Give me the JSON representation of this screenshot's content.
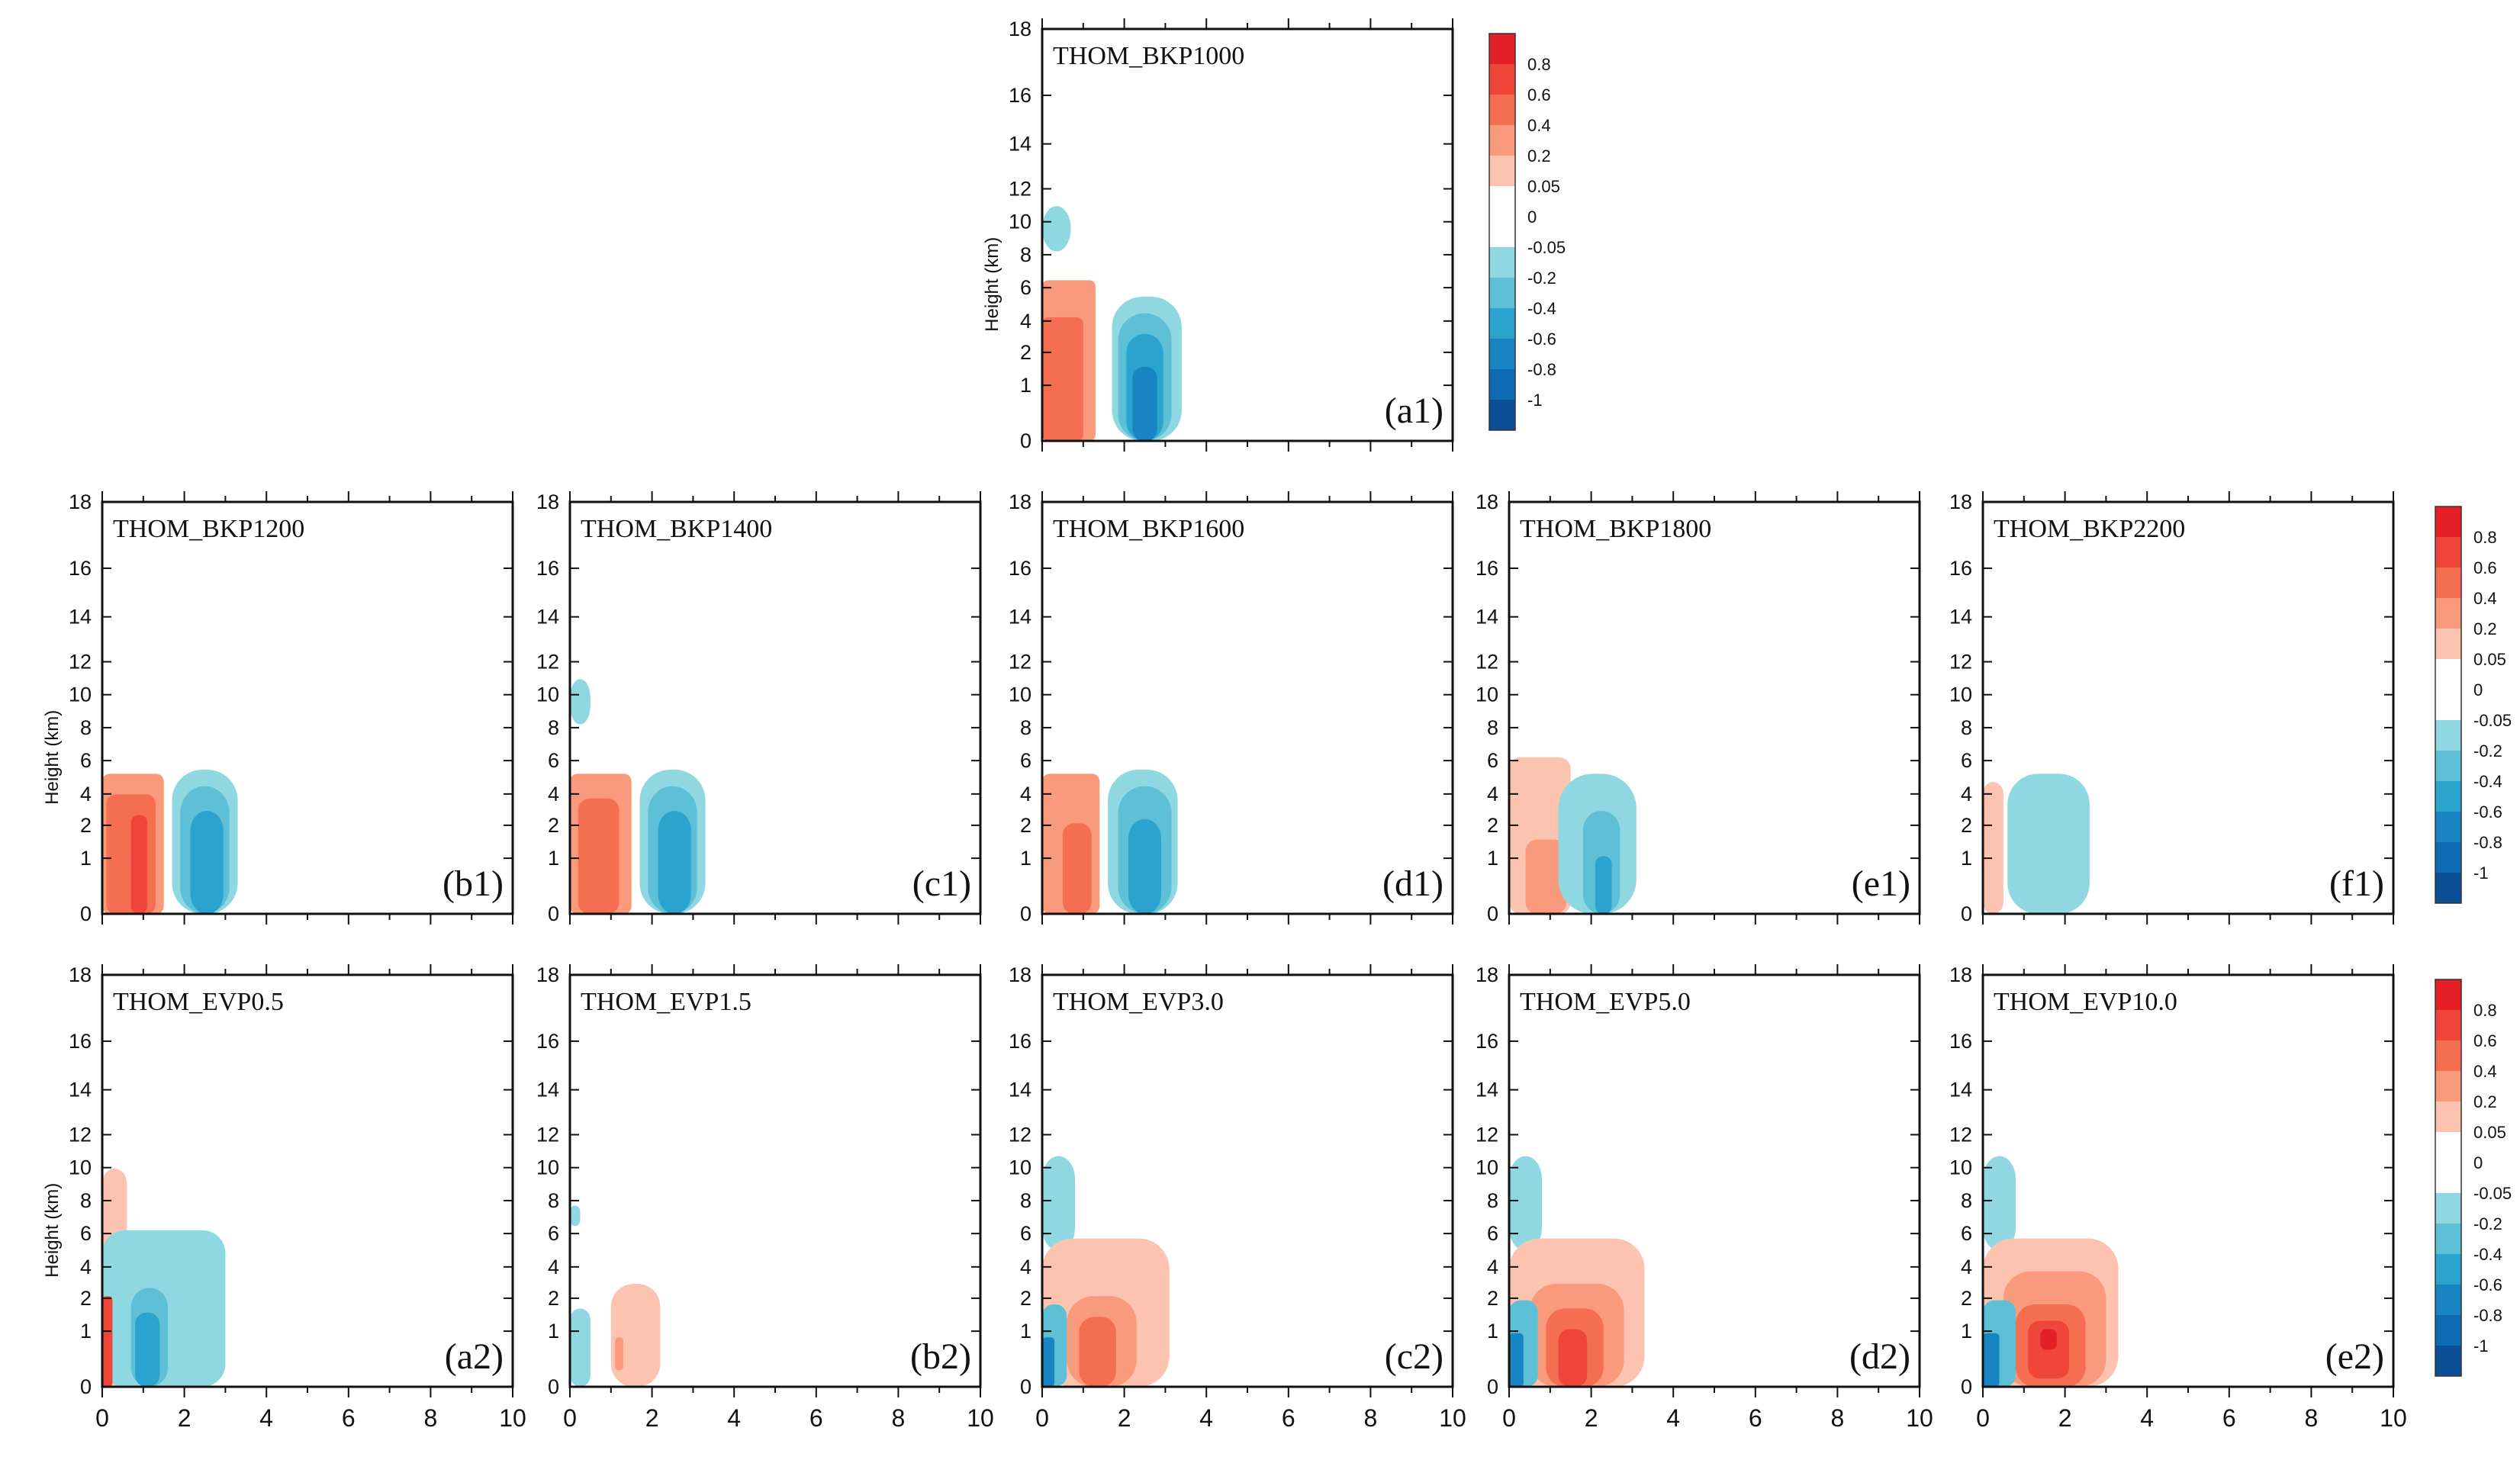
{
  "chart_data": {
    "type": "heatmap",
    "description_axis": {
      "ylabel": "Height (km)",
      "y_ticks": [
        "0",
        "1",
        "2",
        "4",
        "6",
        "8",
        "10",
        "12",
        "14",
        "16",
        "18"
      ],
      "x_ticks": [
        "0",
        "2",
        "4",
        "6",
        "8",
        "10"
      ],
      "xlim": [
        0,
        10
      ],
      "ylim": [
        0,
        18
      ]
    },
    "colorbar": {
      "labels": [
        "0.8",
        "0.6",
        "0.4",
        "0.2",
        "0.05",
        "0",
        "-0.05",
        "-0.2",
        "-0.4",
        "-0.6",
        "-0.8",
        "-1"
      ],
      "colors": [
        "#e41f26",
        "#f0453a",
        "#f56e52",
        "#fa9a7c",
        "#fcc4b0",
        "#ffffff",
        "#ffffff",
        "#8fd8e2",
        "#5ec0d6",
        "#2aa4cf",
        "#1884c2",
        "#0d6bb3",
        "#0a4f95"
      ]
    },
    "panels": [
      {
        "title": "THOM_BKP1000",
        "label": "(a1)",
        "show_ylabel": true,
        "show_xticks": false
      },
      {
        "title": "THOM_BKP1200",
        "label": "(b1)",
        "show_ylabel": true,
        "show_xticks": false
      },
      {
        "title": "THOM_BKP1400",
        "label": "(c1)",
        "show_ylabel": false,
        "show_xticks": false
      },
      {
        "title": "THOM_BKP1600",
        "label": "(d1)",
        "show_ylabel": false,
        "show_xticks": false
      },
      {
        "title": "THOM_BKP1800",
        "label": "(e1)",
        "show_ylabel": false,
        "show_xticks": false
      },
      {
        "title": "THOM_BKP2200",
        "label": "(f1)",
        "show_ylabel": false,
        "show_xticks": false
      },
      {
        "title": "THOM_EVP0.5",
        "label": "(a2)",
        "show_ylabel": true,
        "show_xticks": true
      },
      {
        "title": "THOM_EVP1.5",
        "label": "(b2)",
        "show_ylabel": false,
        "show_xticks": true
      },
      {
        "title": "THOM_EVP3.0",
        "label": "(c2)",
        "show_ylabel": false,
        "show_xticks": true
      },
      {
        "title": "THOM_EVP5.0",
        "label": "(d2)",
        "show_ylabel": false,
        "show_xticks": true
      },
      {
        "title": "THOM_EVP10.0",
        "label": "(e2)",
        "show_ylabel": false,
        "show_xticks": true
      }
    ]
  }
}
